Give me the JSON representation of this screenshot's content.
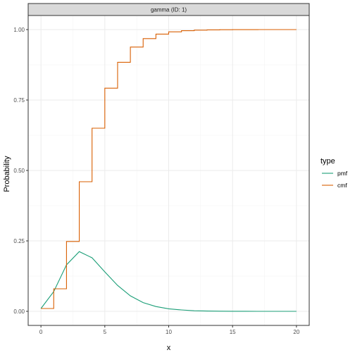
{
  "chart_data": {
    "type": "line",
    "facet_label": "gamma (ID: 1)",
    "xlabel": "x",
    "ylabel": "Probability",
    "xlim": [
      -1,
      21
    ],
    "ylim": [
      -0.05,
      1.05
    ],
    "x_ticks": [
      0,
      5,
      10,
      15,
      20
    ],
    "y_ticks": [
      0.0,
      0.25,
      0.5,
      0.75,
      1.0
    ],
    "y_tick_labels": [
      "0.00",
      "0.25",
      "0.50",
      "0.75",
      "1.00"
    ],
    "x_tick_labels": [
      "0",
      "5",
      "10",
      "15",
      "20"
    ],
    "grid": true,
    "legend": {
      "title": "type",
      "position": "right",
      "entries": [
        {
          "label": "pmf",
          "color": "#1b9e77"
        },
        {
          "label": "cmf",
          "color": "#d95f02"
        }
      ]
    },
    "x": [
      0,
      1,
      2,
      3,
      4,
      5,
      6,
      7,
      8,
      9,
      10,
      11,
      12,
      13,
      14,
      15,
      16,
      17,
      18,
      19,
      20
    ],
    "series": [
      {
        "name": "pmf",
        "style": "line",
        "color": "#1b9e77",
        "values": [
          0.01,
          0.07,
          0.165,
          0.212,
          0.19,
          0.14,
          0.092,
          0.055,
          0.031,
          0.017,
          0.009,
          0.005,
          0.002,
          0.001,
          0.0005,
          0.0002,
          0.0001,
          0.0,
          0.0,
          0.0,
          0.0
        ]
      },
      {
        "name": "cmf",
        "style": "step",
        "color": "#d95f02",
        "values": [
          0.01,
          0.08,
          0.248,
          0.46,
          0.65,
          0.792,
          0.884,
          0.938,
          0.968,
          0.984,
          0.992,
          0.996,
          0.998,
          0.999,
          0.9995,
          0.9998,
          0.9999,
          1.0,
          1.0,
          1.0,
          1.0
        ]
      }
    ]
  }
}
